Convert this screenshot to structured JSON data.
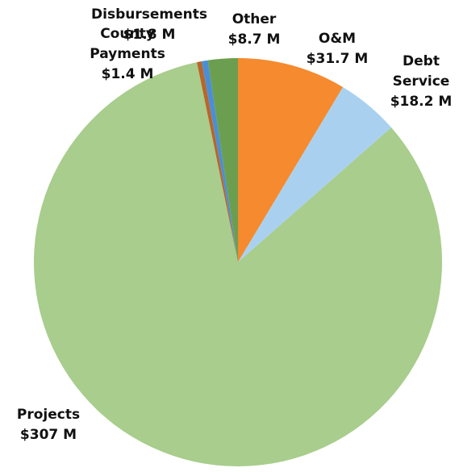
{
  "chart_data": {
    "type": "pie",
    "categories": [
      "O&M",
      "Debt Service",
      "Projects",
      "County Payments",
      "Disbursements",
      "Other"
    ],
    "values": [
      31.7,
      18.2,
      307,
      1.4,
      1.8,
      8.7
    ],
    "value_labels": [
      "$31.7 M",
      "$18.2 M",
      "$307 M",
      "$1.4 M",
      "$1.8 M",
      "$8.7 M"
    ],
    "colors": [
      "#f58a2e",
      "#a9d1ef",
      "#a8cd8c",
      "#b8662a",
      "#4a8fd6",
      "#6c9e50"
    ]
  }
}
